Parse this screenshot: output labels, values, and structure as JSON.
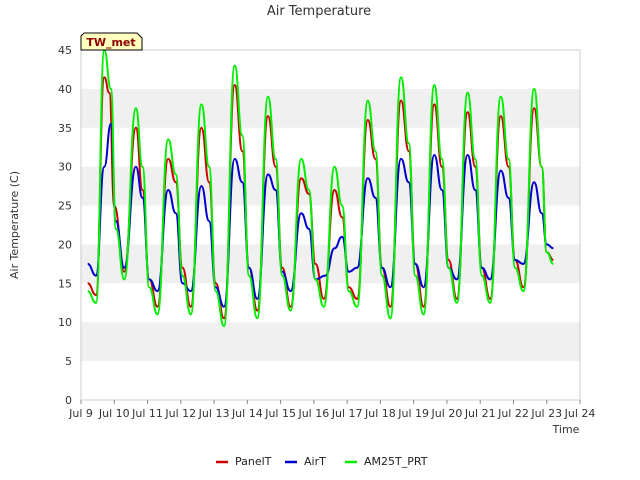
{
  "chart_data": {
    "type": "line",
    "title": "Air Temperature",
    "xlabel": "Time",
    "ylabel": "Air Temperature (C)",
    "badge": "TW_met",
    "xlim": [
      9,
      24
    ],
    "ylim": [
      0,
      45
    ],
    "x_ticks": [
      9,
      10,
      11,
      12,
      13,
      14,
      15,
      16,
      17,
      18,
      19,
      20,
      21,
      22,
      23,
      24
    ],
    "x_tick_labels": [
      "Jul 9",
      "Jul 10",
      "Jul 11",
      "Jul 12",
      "Jul 13",
      "Jul 14",
      "Jul 15",
      "Jul 16",
      "Jul 17",
      "Jul 18",
      "Jul 19",
      "Jul 20",
      "Jul 21",
      "Jul 22",
      "Jul 23",
      "Jul 24"
    ],
    "y_ticks": [
      0,
      5,
      10,
      15,
      20,
      25,
      30,
      35,
      40,
      45
    ],
    "grid": "horizontal alternating bands",
    "band_color": "#f0f0f0",
    "legend_position": "bottom",
    "series": [
      {
        "name": "PanelT",
        "color": "#cc0000",
        "points": [
          [
            9.2,
            15.0
          ],
          [
            9.45,
            13.5
          ],
          [
            9.7,
            41.5
          ],
          [
            9.85,
            39.5
          ],
          [
            10.0,
            25.0
          ],
          [
            10.3,
            16.5
          ],
          [
            10.65,
            35.0
          ],
          [
            10.85,
            27.0
          ],
          [
            11.05,
            15.5
          ],
          [
            11.3,
            12.0
          ],
          [
            11.62,
            31.0
          ],
          [
            11.85,
            28.0
          ],
          [
            12.05,
            17.0
          ],
          [
            12.3,
            12.0
          ],
          [
            12.62,
            35.0
          ],
          [
            12.85,
            28.0
          ],
          [
            13.05,
            15.0
          ],
          [
            13.3,
            10.5
          ],
          [
            13.62,
            40.5
          ],
          [
            13.85,
            32.0
          ],
          [
            14.05,
            17.0
          ],
          [
            14.3,
            11.5
          ],
          [
            14.62,
            36.5
          ],
          [
            14.85,
            30.0
          ],
          [
            15.05,
            17.0
          ],
          [
            15.3,
            12.0
          ],
          [
            15.62,
            28.5
          ],
          [
            15.85,
            26.5
          ],
          [
            16.05,
            17.5
          ],
          [
            16.3,
            13.0
          ],
          [
            16.62,
            27.0
          ],
          [
            16.85,
            23.5
          ],
          [
            17.05,
            14.5
          ],
          [
            17.3,
            13.0
          ],
          [
            17.62,
            36.0
          ],
          [
            17.85,
            31.0
          ],
          [
            18.05,
            17.0
          ],
          [
            18.3,
            12.0
          ],
          [
            18.62,
            38.5
          ],
          [
            18.85,
            32.0
          ],
          [
            19.05,
            17.5
          ],
          [
            19.3,
            12.0
          ],
          [
            19.62,
            38.0
          ],
          [
            19.85,
            30.0
          ],
          [
            20.05,
            18.0
          ],
          [
            20.3,
            13.0
          ],
          [
            20.62,
            37.0
          ],
          [
            20.85,
            30.0
          ],
          [
            21.05,
            17.0
          ],
          [
            21.3,
            13.0
          ],
          [
            21.62,
            36.5
          ],
          [
            21.85,
            30.0
          ],
          [
            22.05,
            18.0
          ],
          [
            22.3,
            14.5
          ],
          [
            22.62,
            37.5
          ],
          [
            22.85,
            30.0
          ],
          [
            23.0,
            19.0
          ],
          [
            23.2,
            18.0
          ]
        ]
      },
      {
        "name": "AirT",
        "color": "#0000cc",
        "points": [
          [
            9.2,
            17.5
          ],
          [
            9.45,
            16.0
          ],
          [
            9.7,
            30.0
          ],
          [
            9.9,
            35.5
          ],
          [
            10.05,
            23.0
          ],
          [
            10.3,
            17.0
          ],
          [
            10.65,
            30.0
          ],
          [
            10.85,
            26.0
          ],
          [
            11.05,
            15.5
          ],
          [
            11.3,
            14.0
          ],
          [
            11.62,
            27.0
          ],
          [
            11.85,
            24.0
          ],
          [
            12.05,
            15.0
          ],
          [
            12.3,
            14.0
          ],
          [
            12.62,
            27.5
          ],
          [
            12.85,
            23.0
          ],
          [
            13.05,
            14.5
          ],
          [
            13.3,
            12.0
          ],
          [
            13.62,
            31.0
          ],
          [
            13.85,
            28.0
          ],
          [
            14.05,
            17.0
          ],
          [
            14.3,
            13.0
          ],
          [
            14.62,
            29.0
          ],
          [
            14.85,
            27.0
          ],
          [
            15.05,
            16.5
          ],
          [
            15.3,
            14.0
          ],
          [
            15.62,
            24.0
          ],
          [
            15.85,
            22.0
          ],
          [
            16.05,
            15.5
          ],
          [
            16.35,
            16.0
          ],
          [
            16.62,
            19.5
          ],
          [
            16.85,
            21.0
          ],
          [
            17.05,
            16.5
          ],
          [
            17.3,
            17.0
          ],
          [
            17.62,
            28.5
          ],
          [
            17.85,
            26.0
          ],
          [
            18.05,
            17.0
          ],
          [
            18.3,
            14.5
          ],
          [
            18.62,
            31.0
          ],
          [
            18.85,
            28.0
          ],
          [
            19.05,
            17.5
          ],
          [
            19.3,
            14.5
          ],
          [
            19.62,
            31.5
          ],
          [
            19.85,
            27.0
          ],
          [
            20.05,
            17.0
          ],
          [
            20.3,
            15.5
          ],
          [
            20.62,
            31.5
          ],
          [
            20.85,
            27.0
          ],
          [
            21.05,
            17.0
          ],
          [
            21.3,
            15.5
          ],
          [
            21.62,
            29.5
          ],
          [
            21.85,
            26.0
          ],
          [
            22.05,
            18.0
          ],
          [
            22.3,
            17.5
          ],
          [
            22.62,
            28.0
          ],
          [
            22.85,
            24.0
          ],
          [
            23.0,
            20.0
          ],
          [
            23.2,
            19.5
          ]
        ]
      },
      {
        "name": "AM25T_PRT",
        "color": "#00ee00",
        "points": [
          [
            9.2,
            14.0
          ],
          [
            9.45,
            12.5
          ],
          [
            9.7,
            45.0
          ],
          [
            9.9,
            40.0
          ],
          [
            10.05,
            22.0
          ],
          [
            10.3,
            15.5
          ],
          [
            10.65,
            37.5
          ],
          [
            10.85,
            30.0
          ],
          [
            11.05,
            14.5
          ],
          [
            11.3,
            11.0
          ],
          [
            11.62,
            33.5
          ],
          [
            11.85,
            29.0
          ],
          [
            12.05,
            16.0
          ],
          [
            12.3,
            11.0
          ],
          [
            12.62,
            38.0
          ],
          [
            12.85,
            30.0
          ],
          [
            13.05,
            14.0
          ],
          [
            13.3,
            9.5
          ],
          [
            13.62,
            43.0
          ],
          [
            13.85,
            34.0
          ],
          [
            14.05,
            16.0
          ],
          [
            14.3,
            10.5
          ],
          [
            14.62,
            39.0
          ],
          [
            14.85,
            31.0
          ],
          [
            15.05,
            16.0
          ],
          [
            15.3,
            11.5
          ],
          [
            15.62,
            31.0
          ],
          [
            15.85,
            27.0
          ],
          [
            16.05,
            15.5
          ],
          [
            16.3,
            12.0
          ],
          [
            16.62,
            30.0
          ],
          [
            16.85,
            25.0
          ],
          [
            17.05,
            14.0
          ],
          [
            17.3,
            12.0
          ],
          [
            17.62,
            38.5
          ],
          [
            17.85,
            32.0
          ],
          [
            18.05,
            16.0
          ],
          [
            18.3,
            10.5
          ],
          [
            18.62,
            41.5
          ],
          [
            18.85,
            33.0
          ],
          [
            19.05,
            16.0
          ],
          [
            19.3,
            11.0
          ],
          [
            19.62,
            40.5
          ],
          [
            19.85,
            31.0
          ],
          [
            20.05,
            17.0
          ],
          [
            20.3,
            12.5
          ],
          [
            20.62,
            39.5
          ],
          [
            20.85,
            31.0
          ],
          [
            21.05,
            16.0
          ],
          [
            21.3,
            12.5
          ],
          [
            21.62,
            39.0
          ],
          [
            21.85,
            31.0
          ],
          [
            22.05,
            17.0
          ],
          [
            22.3,
            14.0
          ],
          [
            22.62,
            40.0
          ],
          [
            22.85,
            30.0
          ],
          [
            23.0,
            19.0
          ],
          [
            23.2,
            17.5
          ]
        ]
      }
    ]
  }
}
